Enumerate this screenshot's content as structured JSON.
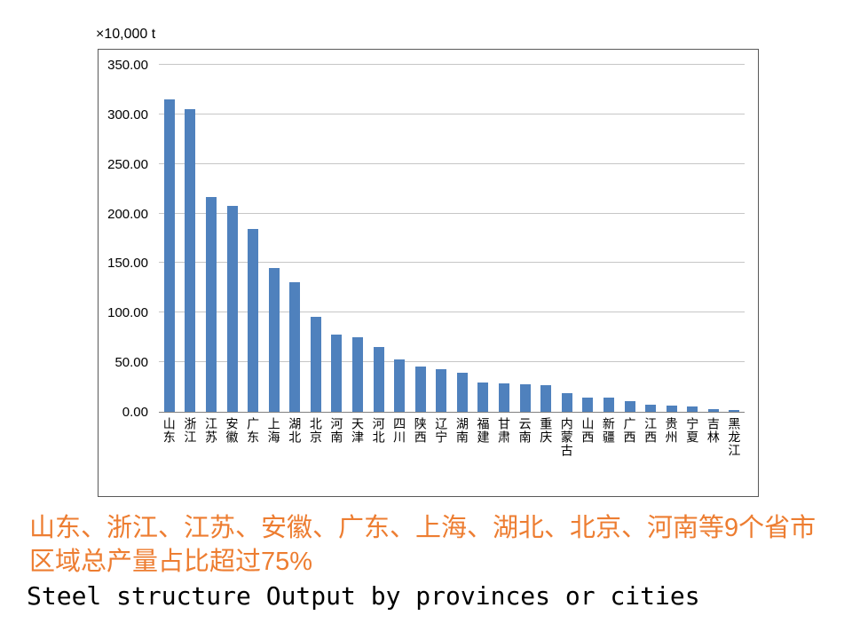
{
  "chart_data": {
    "type": "bar",
    "title": "Steel structure Output by provinces or cities",
    "unit": "×10,000 t",
    "xlabel": "",
    "ylabel": "",
    "ylim": [
      0,
      350
    ],
    "ytick_step": 50,
    "ytick_labels": [
      "0.00",
      "50.00",
      "100.00",
      "150.00",
      "200.00",
      "250.00",
      "300.00",
      "350.00"
    ],
    "grid": true,
    "legend": "none",
    "bar_color": "#4F81BD",
    "categories": [
      "山东",
      "浙江",
      "江苏",
      "安徽",
      "广东",
      "上海",
      "湖北",
      "北京",
      "河南",
      "天津",
      "河北",
      "四川",
      "陕西",
      "辽宁",
      "湖南",
      "福建",
      "甘肃",
      "云南",
      "重庆",
      "内蒙古",
      "山西",
      "新疆",
      "广西",
      "江西",
      "贵州",
      "宁夏",
      "吉林",
      "黑龙江"
    ],
    "values": [
      315,
      305,
      217,
      208,
      184,
      145,
      131,
      96,
      78,
      75,
      65,
      53,
      46,
      43,
      39,
      30,
      29,
      28,
      27,
      19,
      14,
      14,
      11,
      7,
      6,
      5,
      3,
      2
    ]
  },
  "captions": {
    "highlight": "山东、浙江、江苏、安徽、广东、上海、湖北、北京、河南等9个省市区域总产量占比超过75%",
    "highlight_color": "#ED7D31",
    "title": "Steel structure Output by provinces or cities"
  }
}
